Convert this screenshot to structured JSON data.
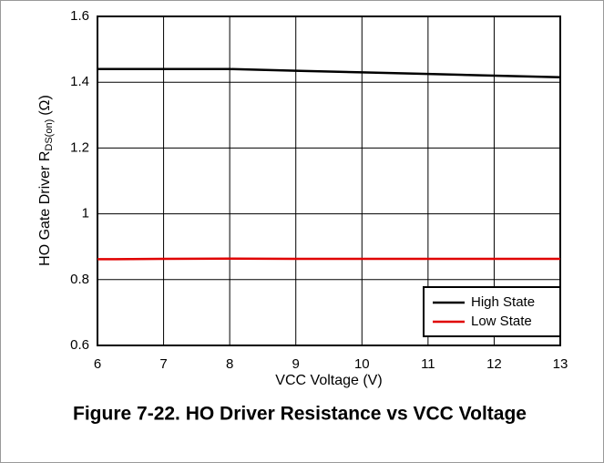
{
  "chart_data": {
    "type": "line",
    "title": "Figure 7-22. HO Driver Resistance vs VCC Voltage",
    "x_label": "VCC Voltage (V)",
    "y_label": {
      "main": "HO Gate Driver R",
      "sub": "DS(on)",
      "unit": "(Ω)"
    },
    "x": [
      6,
      7,
      8,
      9,
      10,
      11,
      12,
      13
    ],
    "series": [
      {
        "name": "High State",
        "color": "#000000",
        "values": [
          1.44,
          1.44,
          1.44,
          1.435,
          1.43,
          1.425,
          1.42,
          1.415
        ]
      },
      {
        "name": "Low State",
        "color": "#e00000",
        "values": [
          0.862,
          0.863,
          0.864,
          0.863,
          0.863,
          0.863,
          0.863,
          0.863
        ]
      }
    ],
    "xlim": [
      6,
      13
    ],
    "xticks": [
      6,
      7,
      8,
      9,
      10,
      11,
      12,
      13
    ],
    "ylim": [
      0.6,
      1.6
    ],
    "yticks": [
      0.6,
      0.8,
      1,
      1.2,
      1.4,
      1.6
    ],
    "grid": true,
    "legend": "lower right"
  }
}
